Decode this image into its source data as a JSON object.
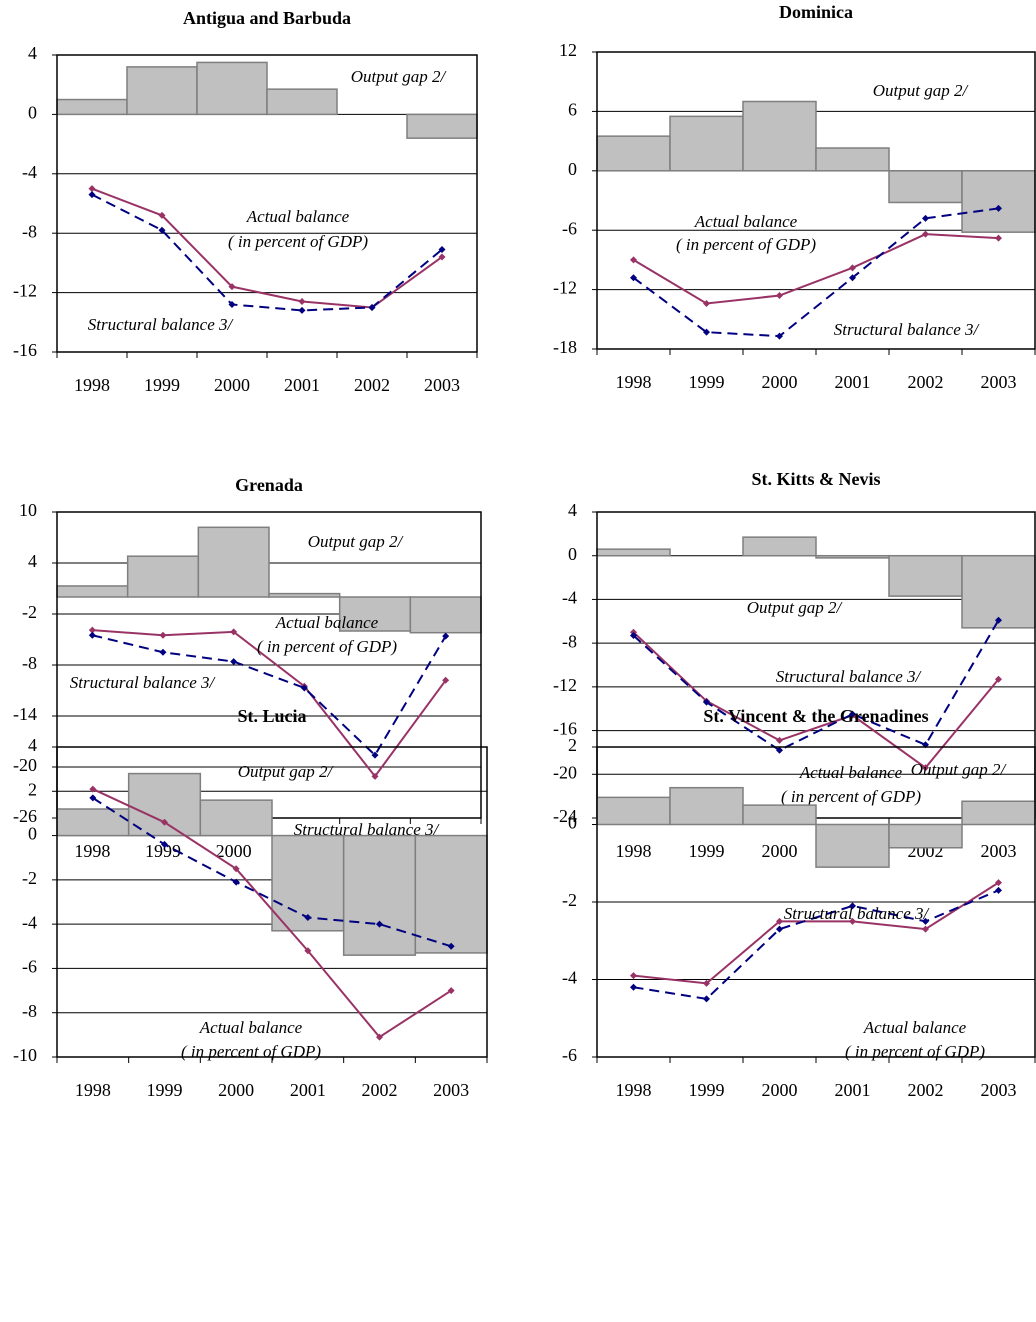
{
  "chart_data": [
    {
      "type": "combo",
      "title": "Antigua and Barbuda",
      "categories": [
        "1998",
        "1999",
        "2000",
        "2001",
        "2002",
        "2003"
      ],
      "ylim": [
        -16,
        4
      ],
      "yticks": [
        4,
        0,
        -4,
        -8,
        -12,
        -16
      ],
      "grid": true,
      "note": "( in percent of GDP)",
      "series": [
        {
          "name": "Output gap 2/",
          "kind": "bar",
          "color": "#c0c0c0",
          "values": [
            1.0,
            3.2,
            3.5,
            1.7,
            0,
            -1.6
          ]
        },
        {
          "name": "Actual balance",
          "kind": "line",
          "color": "#993366",
          "values": [
            -5.0,
            -6.8,
            -11.6,
            -12.6,
            -13.0,
            -9.6
          ]
        },
        {
          "name": "Structural balance 3/",
          "kind": "dashed",
          "color": "#000080",
          "values": [
            -5.4,
            -7.8,
            -12.8,
            -13.2,
            -13.0,
            -9.1
          ]
        }
      ]
    },
    {
      "type": "combo",
      "title": "Dominica",
      "categories": [
        "1998",
        "1999",
        "2000",
        "2001",
        "2002",
        "2003"
      ],
      "ylim": [
        -18,
        12
      ],
      "yticks": [
        12,
        6,
        0,
        -6,
        -12,
        -18
      ],
      "grid": true,
      "note": "( in percent of GDP)",
      "series": [
        {
          "name": "Output gap 2/",
          "kind": "bar",
          "color": "#c0c0c0",
          "values": [
            3.5,
            5.5,
            7.0,
            2.3,
            -3.2,
            -6.2
          ]
        },
        {
          "name": "Actual balance",
          "kind": "line",
          "color": "#993366",
          "values": [
            -9.0,
            -13.4,
            -12.6,
            -9.8,
            -6.4,
            -6.8
          ]
        },
        {
          "name": "Structural balance 3/",
          "kind": "dashed",
          "color": "#000080",
          "values": [
            -10.8,
            -16.3,
            -16.7,
            -10.8,
            -4.8,
            -3.8
          ]
        }
      ]
    },
    {
      "type": "combo",
      "title": "Grenada",
      "categories": [
        "1998",
        "1999",
        "2000",
        "2001",
        "2002",
        "2003"
      ],
      "ylim": [
        -26,
        10
      ],
      "yticks": [
        10,
        4,
        -2,
        -8,
        -14,
        -20,
        -26
      ],
      "grid": true,
      "note": "( in percent of GDP)",
      "series": [
        {
          "name": "Output gap 2/",
          "kind": "bar",
          "color": "#c0c0c0",
          "values": [
            1.3,
            4.8,
            8.2,
            0.4,
            -4.0,
            -4.2
          ]
        },
        {
          "name": "Actual balance",
          "kind": "line",
          "color": "#993366",
          "values": [
            -3.9,
            -4.5,
            -4.1,
            -10.5,
            -21.1,
            -9.8
          ]
        },
        {
          "name": "Structural balance 3/",
          "kind": "dashed",
          "color": "#000080",
          "values": [
            -4.5,
            -6.5,
            -7.6,
            -10.7,
            -18.6,
            -4.6
          ]
        }
      ]
    },
    {
      "type": "combo",
      "title": "St. Kitts & Nevis",
      "categories": [
        "1998",
        "1999",
        "2000",
        "2001",
        "2002",
        "2003"
      ],
      "ylim": [
        -24,
        4
      ],
      "yticks": [
        4,
        0,
        -4,
        -8,
        -12,
        -16,
        -20,
        -24
      ],
      "grid": true,
      "note": "( in percent of GDP)",
      "series": [
        {
          "name": "Output gap 2/",
          "kind": "bar",
          "color": "#c0c0c0",
          "values": [
            0.6,
            0,
            1.7,
            -0.2,
            -3.7,
            -6.6
          ]
        },
        {
          "name": "Actual balance",
          "kind": "line",
          "color": "#993366",
          "values": [
            -7.0,
            -13.3,
            -16.9,
            -14.6,
            -19.4,
            -11.3
          ]
        },
        {
          "name": "Structural balance 3/",
          "kind": "dashed",
          "color": "#000080",
          "values": [
            -7.3,
            -13.4,
            -17.8,
            -14.5,
            -17.3,
            -5.9
          ]
        }
      ]
    },
    {
      "type": "combo",
      "title": "St. Lucia",
      "categories": [
        "1998",
        "1999",
        "2000",
        "2001",
        "2002",
        "2003"
      ],
      "ylim": [
        -10,
        4
      ],
      "yticks": [
        4,
        2,
        0,
        -2,
        -4,
        -6,
        -8,
        -10
      ],
      "grid": true,
      "note": "( in percent of GDP)",
      "series": [
        {
          "name": "Output gap 2/",
          "kind": "bar",
          "color": "#c0c0c0",
          "values": [
            1.2,
            2.8,
            1.6,
            -4.3,
            -5.4,
            -5.3
          ]
        },
        {
          "name": "Actual balance",
          "kind": "line",
          "color": "#993366",
          "values": [
            2.1,
            0.6,
            -1.5,
            -5.2,
            -9.1,
            -7.0
          ]
        },
        {
          "name": "Structural balance 3/",
          "kind": "dashed",
          "color": "#000080",
          "values": [
            1.7,
            -0.4,
            -2.1,
            -3.7,
            -4.0,
            -5.0
          ]
        }
      ]
    },
    {
      "type": "combo",
      "title": "St. Vincent & the Grenadines",
      "categories": [
        "1998",
        "1999",
        "2000",
        "2001",
        "2002",
        "2003"
      ],
      "ylim": [
        -6,
        2
      ],
      "yticks": [
        2,
        0,
        -2,
        -4,
        -6
      ],
      "grid": true,
      "note": "( in percent of GDP)",
      "series": [
        {
          "name": "Output gap 2/",
          "kind": "bar",
          "color": "#c0c0c0",
          "values": [
            0.7,
            0.95,
            0.5,
            -1.1,
            -0.6,
            0.6
          ]
        },
        {
          "name": "Actual balance",
          "kind": "line",
          "color": "#993366",
          "values": [
            -3.9,
            -4.1,
            -2.5,
            -2.5,
            -2.7,
            -1.5
          ]
        },
        {
          "name": "Structural balance 3/",
          "kind": "dashed",
          "color": "#000080",
          "values": [
            -4.2,
            -4.5,
            -2.7,
            -2.1,
            -2.5,
            -1.7
          ]
        }
      ]
    }
  ]
}
